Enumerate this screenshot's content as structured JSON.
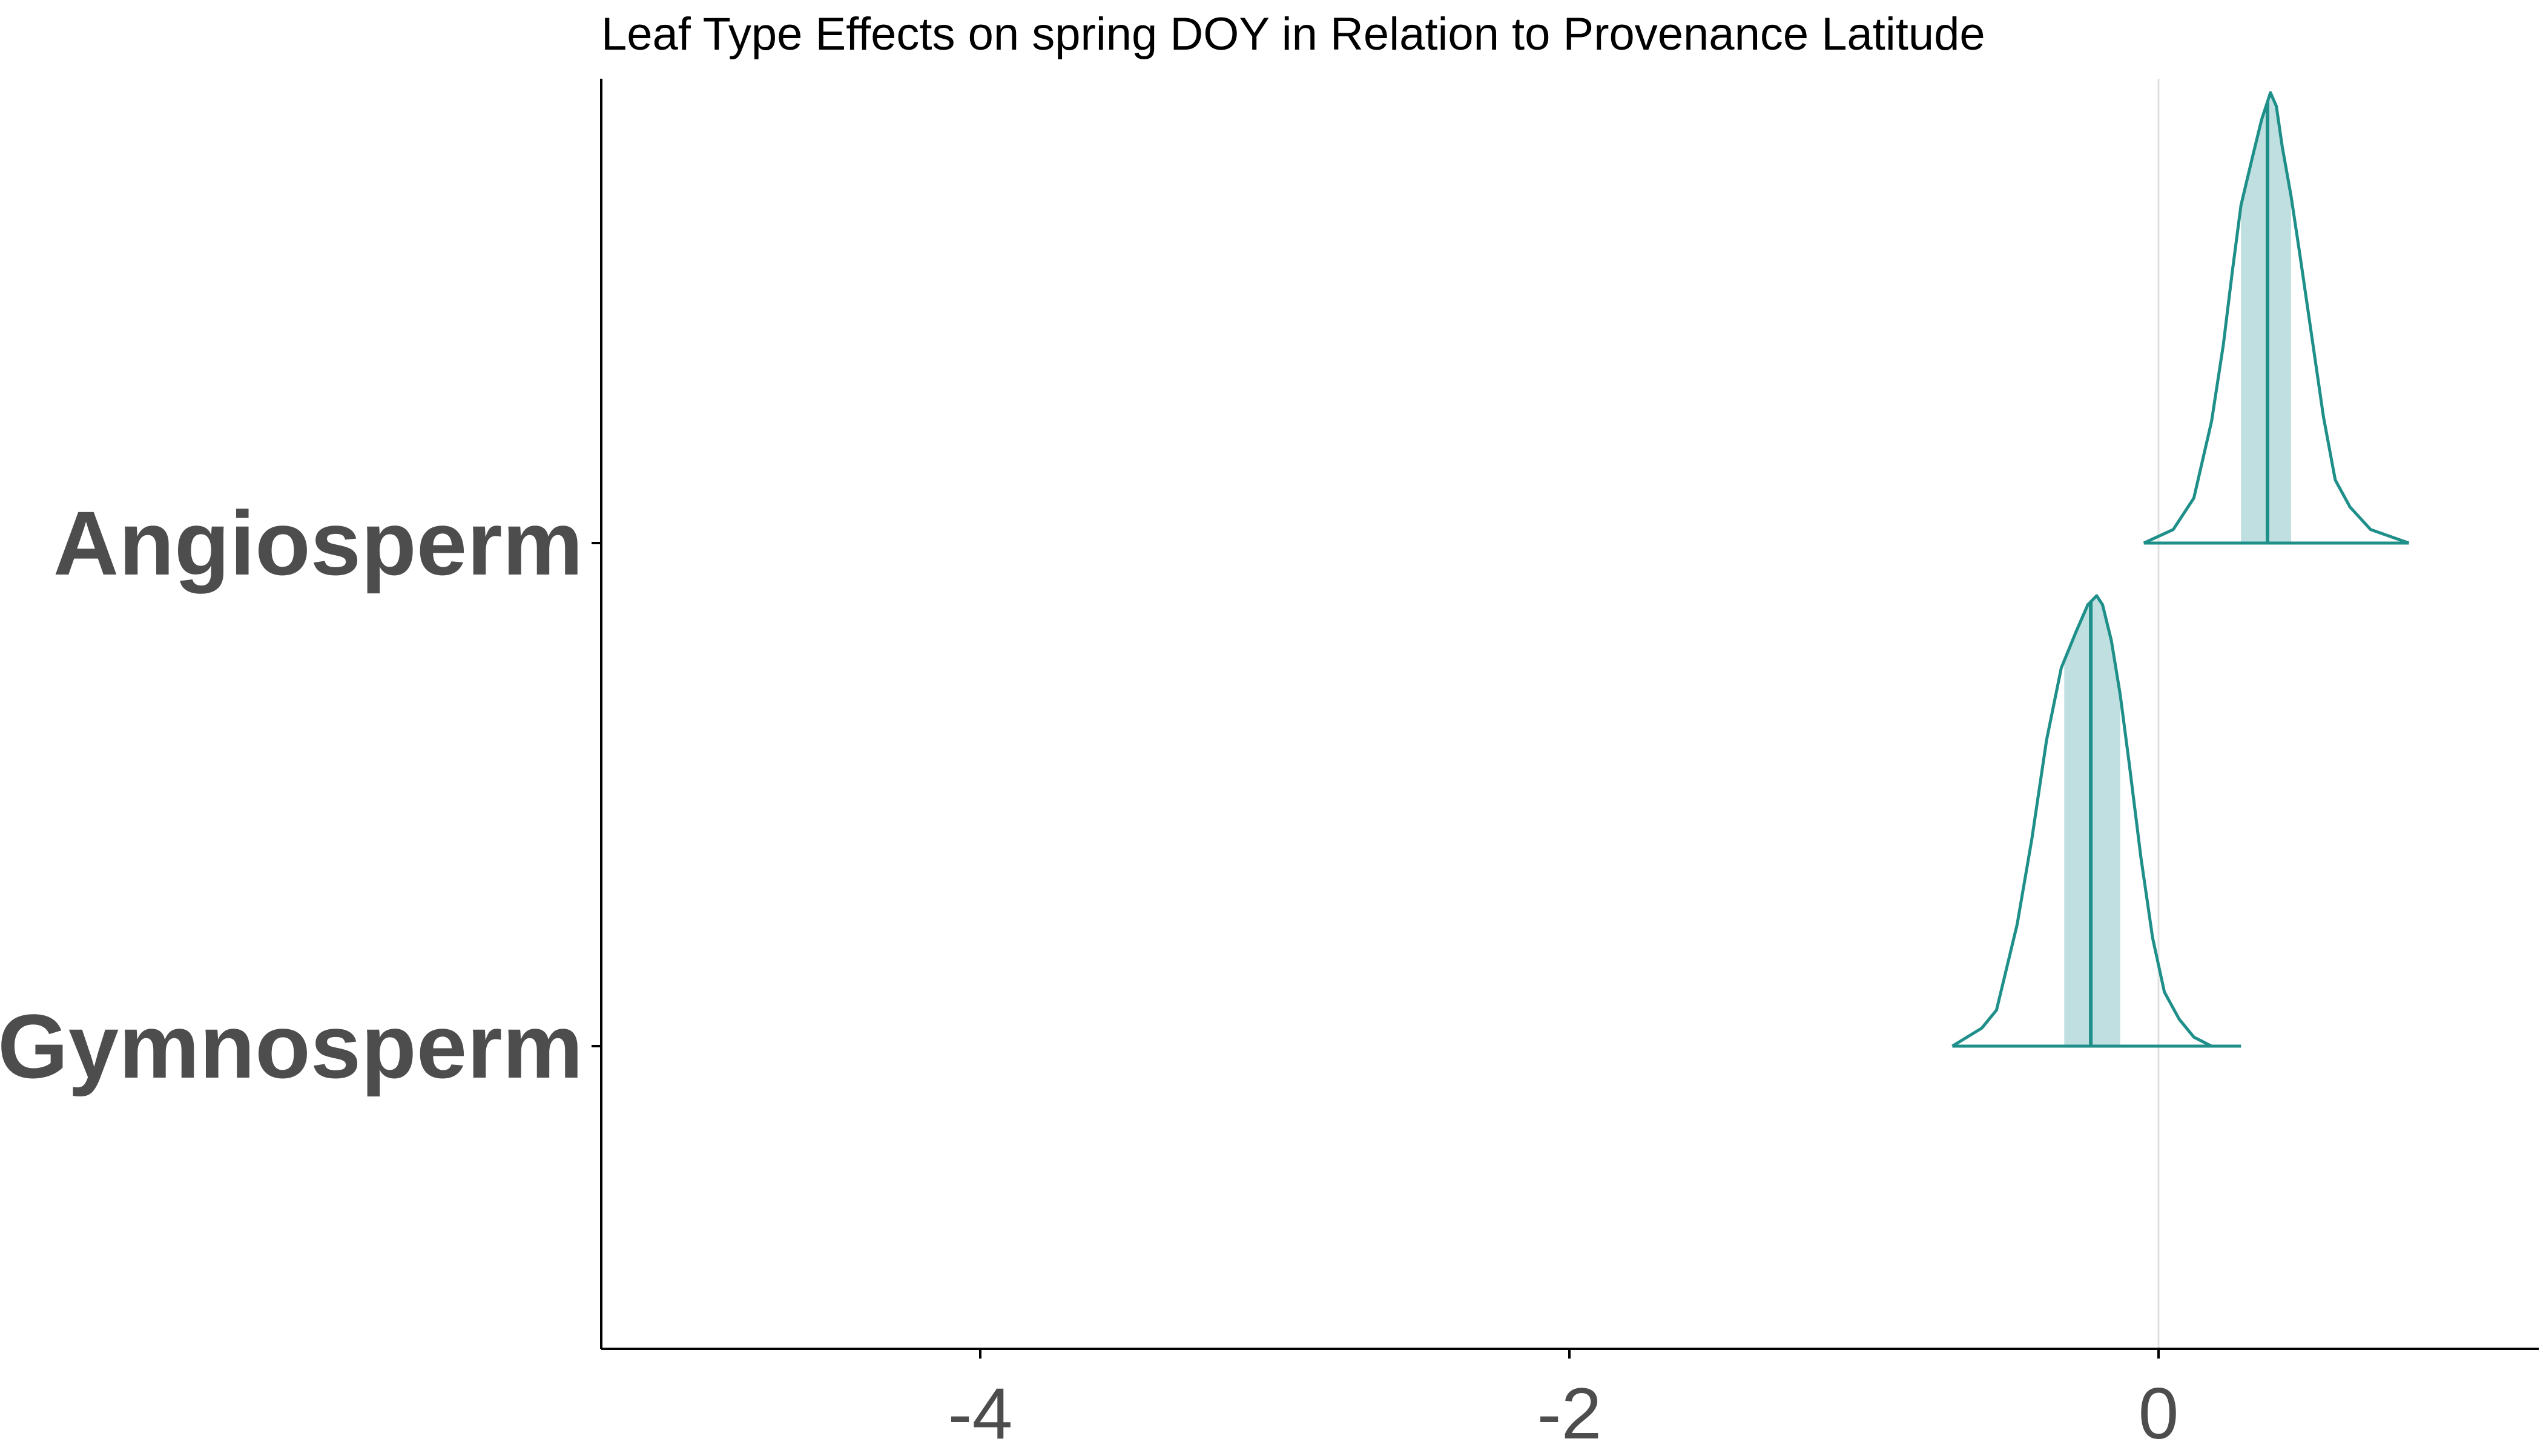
{
  "chart_data": {
    "type": "ridgeline",
    "title": "Leaf Type Effects on spring DOY in Relation to Provenance Latitude",
    "xlabel": "",
    "ylabel": "",
    "xlim": [
      -5.3,
      1.3
    ],
    "x_ticks": [
      {
        "value": -4,
        "label": "-4"
      },
      {
        "value": -2,
        "label": "-2"
      },
      {
        "value": 0,
        "label": "0"
      }
    ],
    "reference_line": 0,
    "grid": false,
    "colors": {
      "outline": "#1f8f8a",
      "fill": "#bfdfe0",
      "reference_line": "#e0e0e0",
      "axis": "#000000"
    },
    "categories": [
      "Angiosperm",
      "Gymnosperm"
    ],
    "series": [
      {
        "name": "Angiosperm",
        "median": 0.37,
        "interval": [
          0.28,
          0.45
        ],
        "density": [
          [
            -0.05,
            0.0
          ],
          [
            0.05,
            0.03
          ],
          [
            0.12,
            0.1
          ],
          [
            0.18,
            0.27
          ],
          [
            0.22,
            0.44
          ],
          [
            0.25,
            0.6
          ],
          [
            0.28,
            0.75
          ],
          [
            0.32,
            0.86
          ],
          [
            0.35,
            0.94
          ],
          [
            0.37,
            0.98
          ],
          [
            0.38,
            1.0
          ],
          [
            0.4,
            0.97
          ],
          [
            0.42,
            0.88
          ],
          [
            0.45,
            0.77
          ],
          [
            0.48,
            0.64
          ],
          [
            0.52,
            0.46
          ],
          [
            0.56,
            0.28
          ],
          [
            0.6,
            0.14
          ],
          [
            0.65,
            0.08
          ],
          [
            0.72,
            0.03
          ],
          [
            0.85,
            0.0
          ]
        ]
      },
      {
        "name": "Gymnosperm",
        "median": -0.23,
        "interval": [
          -0.32,
          -0.13
        ],
        "density": [
          [
            -0.7,
            0.0
          ],
          [
            -0.6,
            0.04
          ],
          [
            -0.55,
            0.08
          ],
          [
            -0.48,
            0.27
          ],
          [
            -0.43,
            0.46
          ],
          [
            -0.38,
            0.68
          ],
          [
            -0.33,
            0.84
          ],
          [
            -0.28,
            0.92
          ],
          [
            -0.24,
            0.98
          ],
          [
            -0.21,
            1.0
          ],
          [
            -0.19,
            0.98
          ],
          [
            -0.16,
            0.9
          ],
          [
            -0.13,
            0.78
          ],
          [
            -0.1,
            0.63
          ],
          [
            -0.06,
            0.42
          ],
          [
            -0.02,
            0.24
          ],
          [
            0.02,
            0.12
          ],
          [
            0.07,
            0.06
          ],
          [
            0.12,
            0.02
          ],
          [
            0.18,
            0.0
          ],
          [
            0.28,
            0.0
          ]
        ]
      }
    ]
  }
}
